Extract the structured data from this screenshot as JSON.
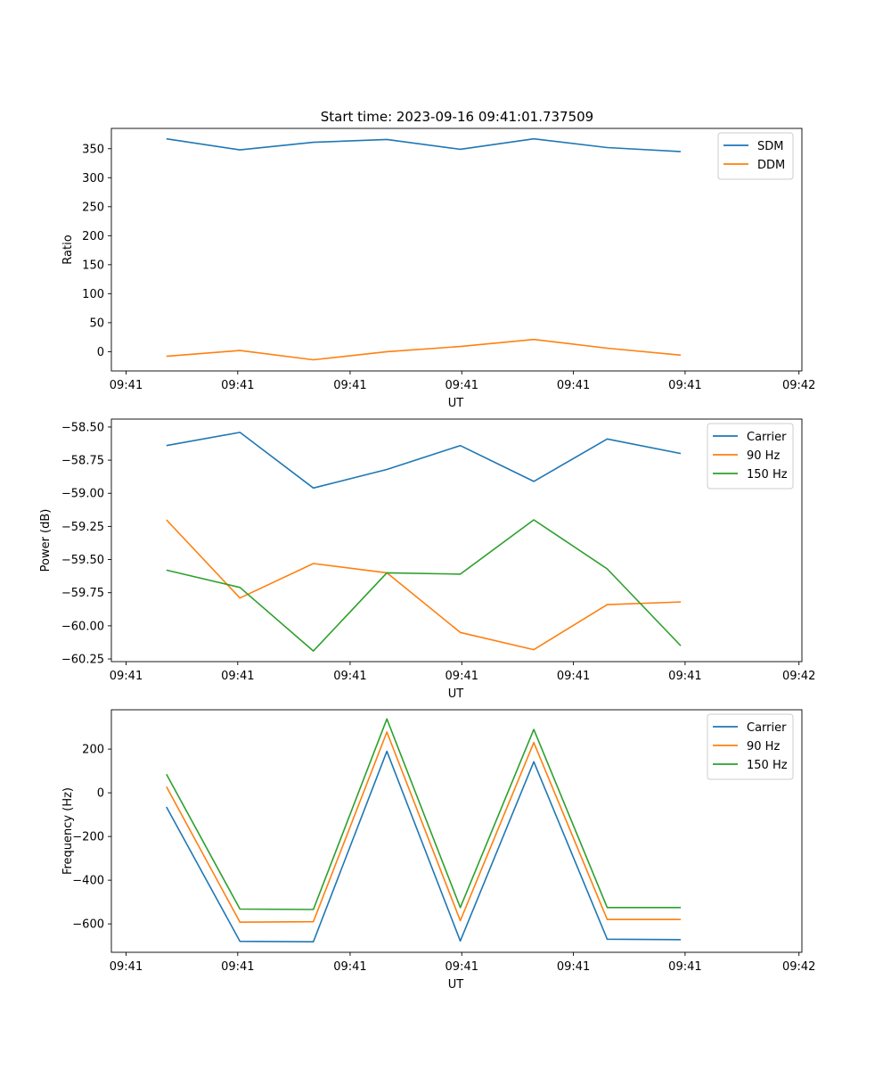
{
  "figure_title": "Start time: 2023-09-16 09:41:01.737509",
  "colors": {
    "blue": "#1f77b4",
    "orange": "#ff7f0e",
    "green": "#2ca02c"
  },
  "chart_data": [
    {
      "type": "line",
      "id": "ratio",
      "title": "Start time: 2023-09-16 09:41:01.737509",
      "xlabel": "UT",
      "ylabel": "Ratio",
      "x": [
        1,
        2,
        3,
        4,
        5,
        6,
        7,
        8
      ],
      "xlim": [
        0.25,
        9.65
      ],
      "xticks": [
        0.45,
        1.97,
        3.5,
        5.02,
        6.54,
        8.06,
        9.61
      ],
      "xtick_labels": [
        "09:41",
        "09:41",
        "09:41",
        "09:41",
        "09:41",
        "09:41",
        "09:42"
      ],
      "ylim": [
        -33.2,
        385
      ],
      "yticks": [
        0,
        50,
        100,
        150,
        200,
        250,
        300,
        350
      ],
      "ytick_labels": [
        "0",
        "50",
        "100",
        "150",
        "200",
        "250",
        "300",
        "350"
      ],
      "legend": "top-right",
      "series": [
        {
          "name": "SDM",
          "color": "#1f77b4",
          "values": [
            367,
            348,
            361,
            366,
            349,
            367,
            352,
            345
          ]
        },
        {
          "name": "DDM",
          "color": "#ff7f0e",
          "values": [
            -8,
            2,
            -14,
            0,
            9,
            21,
            6,
            -6
          ]
        }
      ]
    },
    {
      "type": "line",
      "id": "power",
      "title": "",
      "xlabel": "UT",
      "ylabel": "Power (dB)",
      "x": [
        1,
        2,
        3,
        4,
        5,
        6,
        7,
        8
      ],
      "xlim": [
        0.25,
        9.65
      ],
      "xticks": [
        0.45,
        1.97,
        3.5,
        5.02,
        6.54,
        8.06,
        9.61
      ],
      "xtick_labels": [
        "09:41",
        "09:41",
        "09:41",
        "09:41",
        "09:41",
        "09:41",
        "09:42"
      ],
      "ylim": [
        -60.27,
        -58.44
      ],
      "yticks": [
        -58.5,
        -58.75,
        -59.0,
        -59.25,
        -59.5,
        -59.75,
        -60.0,
        -60.25
      ],
      "ytick_labels": [
        "−58.50",
        "−58.75",
        "−59.00",
        "−59.25",
        "−59.50",
        "−59.75",
        "−60.00",
        "−60.25"
      ],
      "legend": "top-right",
      "series": [
        {
          "name": "Carrier",
          "color": "#1f77b4",
          "values": [
            -58.64,
            -58.54,
            -58.96,
            -58.82,
            -58.64,
            -58.91,
            -58.59,
            -58.7
          ]
        },
        {
          "name": "90 Hz",
          "color": "#ff7f0e",
          "values": [
            -59.2,
            -59.79,
            -59.53,
            -59.6,
            -60.05,
            -60.18,
            -59.84,
            -59.82
          ]
        },
        {
          "name": "150 Hz",
          "color": "#2ca02c",
          "values": [
            -59.58,
            -59.71,
            -60.19,
            -59.6,
            -59.61,
            -59.2,
            -59.57,
            -60.15
          ]
        }
      ]
    },
    {
      "type": "line",
      "id": "frequency",
      "title": "",
      "xlabel": "UT",
      "ylabel": "Frequency (Hz)",
      "x": [
        1,
        2,
        3,
        4,
        5,
        6,
        7,
        8
      ],
      "xlim": [
        0.25,
        9.65
      ],
      "xticks": [
        0.45,
        1.97,
        3.5,
        5.02,
        6.54,
        8.06,
        9.61
      ],
      "xtick_labels": [
        "09:41",
        "09:41",
        "09:41",
        "09:41",
        "09:41",
        "09:41",
        "09:42"
      ],
      "ylim": [
        -730,
        380
      ],
      "yticks": [
        200,
        0,
        -200,
        -400,
        -600
      ],
      "ytick_labels": [
        "200",
        "0",
        "−200",
        "−400",
        "−600"
      ],
      "legend": "top-right",
      "series": [
        {
          "name": "Carrier",
          "color": "#1f77b4",
          "values": [
            -65,
            -680,
            -682,
            190,
            -678,
            142,
            -670,
            -672
          ]
        },
        {
          "name": "90 Hz",
          "color": "#ff7f0e",
          "values": [
            28,
            -592,
            -590,
            278,
            -585,
            230,
            -580,
            -580
          ]
        },
        {
          "name": "150 Hz",
          "color": "#2ca02c",
          "values": [
            85,
            -532,
            -534,
            338,
            -525,
            290,
            -525,
            -525
          ]
        }
      ]
    }
  ]
}
